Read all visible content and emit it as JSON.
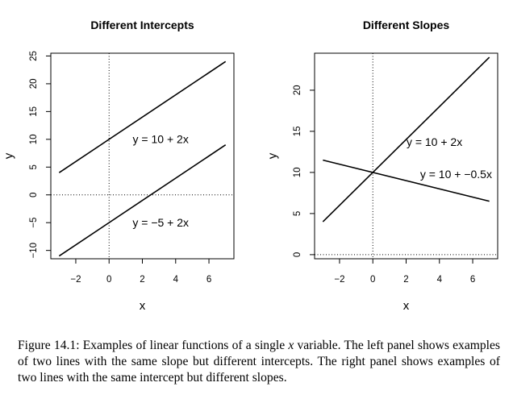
{
  "chart_data": [
    {
      "type": "line",
      "title": "Different Intercepts",
      "xlabel": "x",
      "ylabel": "y",
      "xlim": [
        -3.5,
        7.5
      ],
      "ylim": [
        -11.5,
        25.5
      ],
      "xticks": [
        -2,
        0,
        2,
        4,
        6
      ],
      "yticks": [
        -10,
        -5,
        0,
        5,
        10,
        15,
        20,
        25
      ],
      "tick_labels_x": [
        "−2",
        "0",
        "2",
        "4",
        "6"
      ],
      "tick_labels_y": [
        "−10",
        "−5",
        "0",
        "5",
        "10",
        "15",
        "20",
        "25"
      ],
      "reference_lines": [
        {
          "axis": "x",
          "value": 0
        },
        {
          "axis": "y",
          "value": 0
        }
      ],
      "series": [
        {
          "x": [
            -3,
            7
          ],
          "y": [
            4,
            24
          ],
          "intercept": 10,
          "slope": 2
        },
        {
          "x": [
            -3,
            7
          ],
          "y": [
            -11,
            9
          ],
          "intercept": -5,
          "slope": 2
        }
      ],
      "annotations": [
        {
          "text": "y = 10 + 2x",
          "x": 3.1,
          "y": 10
        },
        {
          "text": "y = −5 + 2x",
          "x": 3.1,
          "y": -5
        }
      ]
    },
    {
      "type": "line",
      "title": "Different Slopes",
      "xlabel": "x",
      "ylabel": "y",
      "xlim": [
        -3.5,
        7.5
      ],
      "ylim": [
        -0.5,
        24.5
      ],
      "xticks": [
        -2,
        0,
        2,
        4,
        6
      ],
      "yticks": [
        0,
        5,
        10,
        15,
        20
      ],
      "tick_labels_x": [
        "−2",
        "0",
        "2",
        "4",
        "6"
      ],
      "tick_labels_y": [
        "0",
        "5",
        "10",
        "15",
        "20"
      ],
      "reference_lines": [
        {
          "axis": "x",
          "value": 0
        },
        {
          "axis": "y",
          "value": 0
        }
      ],
      "series": [
        {
          "x": [
            -3,
            7
          ],
          "y": [
            4,
            24
          ],
          "intercept": 10,
          "slope": 2
        },
        {
          "x": [
            -3,
            7
          ],
          "y": [
            11.5,
            6.5
          ],
          "intercept": 10,
          "slope": -0.5
        }
      ],
      "annotations": [
        {
          "text": "y = 10 + 2x",
          "x": 3.7,
          "y": 13.7
        },
        {
          "text": "y = 10 + −0.5x",
          "x": 5.0,
          "y": 9.8
        }
      ]
    }
  ],
  "caption": {
    "label": "Figure 14.1:",
    "text_before_var": " Examples of linear functions of a single ",
    "var": "x",
    "text_after_var": " variable. The left panel shows examples of two lines with the same slope but different intercepts. The right panel shows examples of two lines with the same intercept but different slopes."
  }
}
